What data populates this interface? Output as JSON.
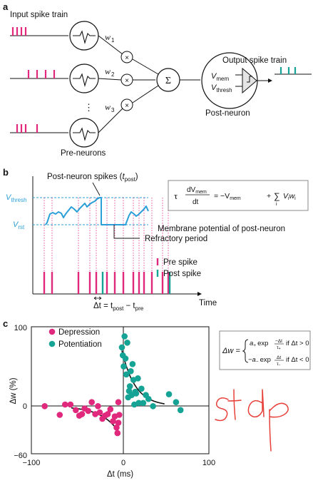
{
  "colors": {
    "pre_spike": "#e0287d",
    "post_spike": "#14a394",
    "membrane": "#2a9fd8",
    "handwriting": "#e8403a"
  },
  "panel_a": {
    "label": "a",
    "input_title": "Input spike train",
    "weights": {
      "w": "w",
      "subs": [
        "1",
        "2",
        "3"
      ]
    },
    "multiply_symbol": "×",
    "sum_symbol": "Σ",
    "ellipsis": "⋮",
    "pre_neurons_label": "Pre-neurons",
    "post_neuron_label": "Post-neuron",
    "output_title": "Output spike train",
    "v_mem": {
      "v": "V",
      "sub": "mem"
    },
    "v_thresh": {
      "v": "V",
      "sub": "thresh"
    }
  },
  "panel_b": {
    "label": "b",
    "post_spikes_label": "Post-neuron spikes (",
    "post_spikes_t": "t",
    "post_spikes_sub": "post",
    "post_spikes_close": ")",
    "v_thresh": {
      "v": "V",
      "sub": "thresh"
    },
    "v_rst": {
      "v": "V",
      "sub": "rst"
    },
    "membrane_label": "Membrane potential of post-neuron",
    "refractory_label": "Refractory period",
    "legend": {
      "pre": "Pre spike",
      "post": "Post spike"
    },
    "time_label": "Time",
    "delta_t": {
      "lhs": "Δt = t",
      "sub1": "post",
      "mid": " − t",
      "sub2": "pre"
    },
    "equation": {
      "tau": "τ",
      "num": "dV",
      "num_sub": "mem",
      "den": "dt",
      "rhs1": "= −V",
      "rhs1_sub": "mem",
      "plus": "+",
      "sum": "∑",
      "sum_sub": "i",
      "term": "V",
      "term_sub": "i",
      "w": "w",
      "w_sub": "i"
    },
    "pre_spike_times": [
      16,
      27,
      64,
      80,
      89,
      104,
      115,
      127,
      141,
      149,
      156,
      167,
      182,
      190
    ],
    "post_spike_times": [
      98,
      192
    ]
  },
  "panel_c": {
    "label": "c",
    "legend": {
      "depression": "Depression",
      "potentiation": "Potentiation"
    },
    "ylabel": "Δw (%)",
    "xlabel": "Δt (ms)",
    "yticks": [
      "100",
      "0",
      "−60"
    ],
    "xticks": [
      "−100",
      "0",
      "100"
    ],
    "rule": {
      "lhs": "Δw =",
      "case1": {
        "a": "a",
        "a_sub": "+",
        "exp": "exp",
        "num": "−Δt",
        "den": "τ",
        "den_sub": "+",
        "cond": "if Δt > 0"
      },
      "case2": {
        "a": "−a",
        "a_sub": "−",
        "exp": "exp",
        "num": "Δt",
        "den": "τ",
        "den_sub": "−",
        "cond": "if Δt < 0"
      }
    },
    "handwriting": "stdp"
  },
  "chart_data": {
    "type": "scatter",
    "xlabel": "Δt (ms)",
    "ylabel": "Δw (%)",
    "xlim": [
      -100,
      100
    ],
    "ylim": [
      -60,
      100
    ],
    "series": [
      {
        "name": "Depression",
        "color": "#e0287d",
        "points": [
          [
            -85,
            0
          ],
          [
            -68,
            -11
          ],
          [
            -62,
            2
          ],
          [
            -56,
            2
          ],
          [
            -50,
            -5
          ],
          [
            -46,
            -12
          ],
          [
            -43,
            -10
          ],
          [
            -40,
            -3
          ],
          [
            -36,
            -6
          ],
          [
            -32,
            5
          ],
          [
            -28,
            -10
          ],
          [
            -25,
            0
          ],
          [
            -23,
            -8
          ],
          [
            -20,
            -16
          ],
          [
            -17,
            -12
          ],
          [
            -14,
            -10
          ],
          [
            -11,
            -4
          ],
          [
            -8,
            -19
          ],
          [
            -6,
            -13
          ],
          [
            -4,
            -27
          ],
          [
            -3,
            -34
          ],
          [
            -2,
            5
          ],
          [
            -2,
            -21
          ],
          [
            -1,
            -11
          ]
        ]
      },
      {
        "name": "Potentiation",
        "color": "#14a394",
        "points": [
          [
            2,
            74
          ],
          [
            3,
            64
          ],
          [
            4,
            50
          ],
          [
            5,
            88
          ],
          [
            6,
            60
          ],
          [
            7,
            40
          ],
          [
            8,
            80
          ],
          [
            9,
            11
          ],
          [
            10,
            19
          ],
          [
            11,
            25
          ],
          [
            12,
            44
          ],
          [
            13,
            14
          ],
          [
            14,
            53
          ],
          [
            15,
            33
          ],
          [
            16,
            2
          ],
          [
            17,
            18
          ],
          [
            18,
            16
          ],
          [
            20,
            35
          ],
          [
            21,
            4
          ],
          [
            24,
            22
          ],
          [
            26,
            4
          ],
          [
            29,
            14
          ],
          [
            32,
            9
          ],
          [
            37,
            0
          ],
          [
            55,
            15
          ],
          [
            63,
            5
          ],
          [
            68,
            -5
          ]
        ]
      }
    ],
    "fits": [
      {
        "name": "Depression fit",
        "x": [
          -55,
          -5
        ],
        "a": 35,
        "tau": 20,
        "sign": -1
      },
      {
        "name": "Potentiation fit",
        "x": [
          2,
          50
        ],
        "a": 80,
        "tau": 15,
        "sign": 1
      }
    ]
  }
}
